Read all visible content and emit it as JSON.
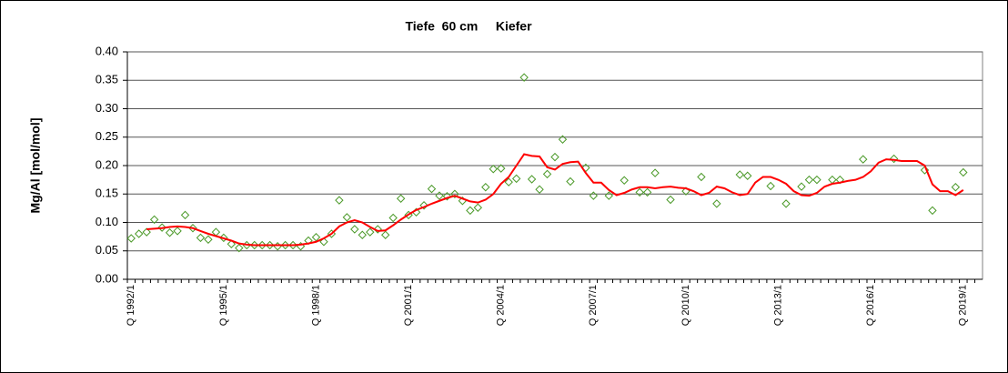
{
  "chart_data": {
    "type": "line",
    "title": "Tiefe  60 cm     Kiefer",
    "y_label": "Mg/Al [mol/mol]",
    "categories": [
      "Q 1992/1",
      null,
      null,
      null,
      null,
      null,
      null,
      null,
      null,
      null,
      null,
      null,
      "Q 1995/1",
      null,
      null,
      null,
      null,
      null,
      null,
      null,
      null,
      null,
      null,
      null,
      "Q 1998/1",
      null,
      null,
      null,
      null,
      null,
      null,
      null,
      null,
      null,
      null,
      null,
      "Q 2001/1",
      null,
      null,
      null,
      null,
      null,
      null,
      null,
      null,
      null,
      null,
      null,
      "Q 2004/1",
      null,
      null,
      null,
      null,
      null,
      null,
      null,
      null,
      null,
      null,
      null,
      "Q 2007/1",
      null,
      null,
      null,
      null,
      null,
      null,
      null,
      null,
      null,
      null,
      null,
      "Q 2010/1",
      null,
      null,
      null,
      null,
      null,
      null,
      null,
      null,
      null,
      null,
      null,
      "Q 2013/1",
      null,
      null,
      null,
      null,
      null,
      null,
      null,
      null,
      null,
      null,
      null,
      "Q 2016/1",
      null,
      null,
      null,
      null,
      null,
      null,
      null,
      null,
      null,
      null,
      null,
      "Q 2019/1",
      null,
      null
    ],
    "series": [
      {
        "color": "#4c9a2a",
        "marker": "diamond",
        "line": false,
        "values": [
          0.072,
          0.08,
          0.083,
          0.105,
          0.091,
          0.082,
          0.085,
          0.113,
          0.09,
          0.073,
          0.07,
          0.083,
          0.073,
          0.062,
          0.055,
          0.06,
          0.06,
          0.06,
          0.06,
          0.058,
          0.06,
          0.06,
          0.058,
          0.068,
          0.074,
          0.066,
          0.08,
          0.139,
          0.109,
          0.088,
          0.078,
          0.083,
          0.088,
          0.078,
          0.108,
          0.142,
          0.113,
          0.118,
          0.13,
          0.159,
          0.147,
          0.146,
          0.15,
          0.138,
          0.121,
          0.126,
          0.162,
          0.194,
          0.195,
          0.171,
          0.177,
          0.355,
          0.176,
          0.158,
          0.185,
          0.215,
          0.246,
          0.172,
          null,
          0.196,
          0.147,
          null,
          0.147,
          null,
          0.174,
          null,
          0.153,
          0.153,
          0.187,
          null,
          0.14,
          null,
          0.155,
          null,
          0.18,
          null,
          0.133,
          null,
          null,
          0.184,
          0.182,
          null,
          null,
          0.164,
          null,
          0.133,
          null,
          0.163,
          0.175,
          0.175,
          null,
          0.175,
          0.175,
          null,
          null,
          0.211,
          null,
          null,
          null,
          0.212,
          null,
          null,
          null,
          0.192,
          0.121,
          null,
          null,
          0.162,
          0.188,
          null,
          null
        ]
      },
      {
        "color": "#ff0000",
        "marker": "none",
        "line": true,
        "values": [
          null,
          null,
          0.088,
          0.089,
          0.09,
          0.092,
          0.093,
          0.092,
          0.09,
          0.085,
          0.08,
          0.076,
          0.072,
          0.068,
          0.063,
          0.061,
          0.06,
          0.06,
          0.06,
          0.06,
          0.06,
          0.06,
          0.061,
          0.063,
          0.066,
          0.072,
          0.08,
          0.093,
          0.1,
          0.104,
          0.1,
          0.092,
          0.085,
          0.086,
          0.095,
          0.105,
          0.114,
          0.122,
          0.127,
          0.133,
          0.138,
          0.143,
          0.147,
          0.142,
          0.137,
          0.135,
          0.14,
          0.15,
          0.168,
          0.18,
          0.2,
          0.22,
          0.217,
          0.216,
          0.197,
          0.193,
          0.203,
          0.206,
          0.207,
          0.187,
          0.17,
          0.17,
          0.157,
          0.148,
          0.152,
          0.158,
          0.162,
          0.162,
          0.16,
          0.162,
          0.163,
          0.161,
          0.16,
          0.155,
          0.148,
          0.152,
          0.163,
          0.16,
          0.153,
          0.148,
          0.15,
          0.17,
          0.18,
          0.18,
          0.175,
          0.168,
          0.155,
          0.148,
          0.147,
          0.152,
          0.163,
          0.168,
          0.17,
          0.173,
          0.175,
          0.18,
          0.19,
          0.205,
          0.211,
          0.21,
          0.208,
          0.208,
          0.208,
          0.2,
          0.167,
          0.155,
          0.155,
          0.148,
          0.157,
          null,
          null
        ]
      }
    ],
    "ylim": [
      0,
      0.4
    ],
    "yticks": [
      {
        "value": 0,
        "label": "0.00"
      },
      {
        "value": 0.05,
        "label": "0.05"
      },
      {
        "value": 0.1,
        "label": "0.10"
      },
      {
        "value": 0.15,
        "label": "0.15"
      },
      {
        "value": 0.2,
        "label": "0.20"
      },
      {
        "value": 0.25,
        "label": "0.25"
      },
      {
        "value": 0.3,
        "label": "0.30"
      },
      {
        "value": 0.35,
        "label": "0.35"
      },
      {
        "value": 0.4,
        "label": "0.40"
      }
    ],
    "grid": true
  }
}
